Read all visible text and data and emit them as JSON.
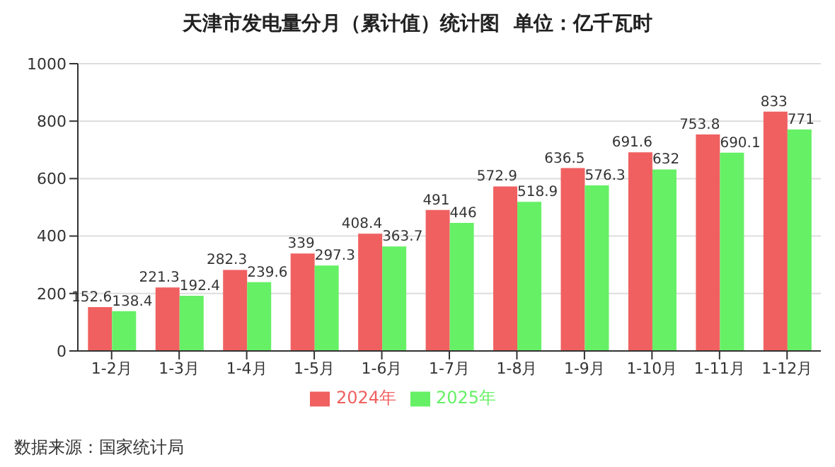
{
  "chart_data": {
    "type": "bar",
    "title": "天津市发电量分月（累计值）统计图  单位：亿千瓦时",
    "categories": [
      "1-2月",
      "1-3月",
      "1-4月",
      "1-5月",
      "1-6月",
      "1-7月",
      "1-8月",
      "1-9月",
      "1-10月",
      "1-11月",
      "1-12月"
    ],
    "series": [
      {
        "name": "2024年",
        "color": "#f06060",
        "values": [
          152.6,
          221.3,
          282.3,
          339,
          408.4,
          491,
          572.9,
          636.5,
          691.6,
          753.8,
          833
        ]
      },
      {
        "name": "2025年",
        "color": "#66f066",
        "values": [
          138.4,
          192.4,
          239.6,
          297.3,
          363.7,
          446,
          518.9,
          576.3,
          632,
          690.1,
          771
        ]
      }
    ],
    "ylim": [
      0,
      1000
    ],
    "yticks": [
      0,
      200,
      400,
      600,
      800,
      1000
    ],
    "grid": "y",
    "legend": "bottom",
    "data_labels": true,
    "annotations": [
      "数据来源：国家统计局"
    ]
  }
}
